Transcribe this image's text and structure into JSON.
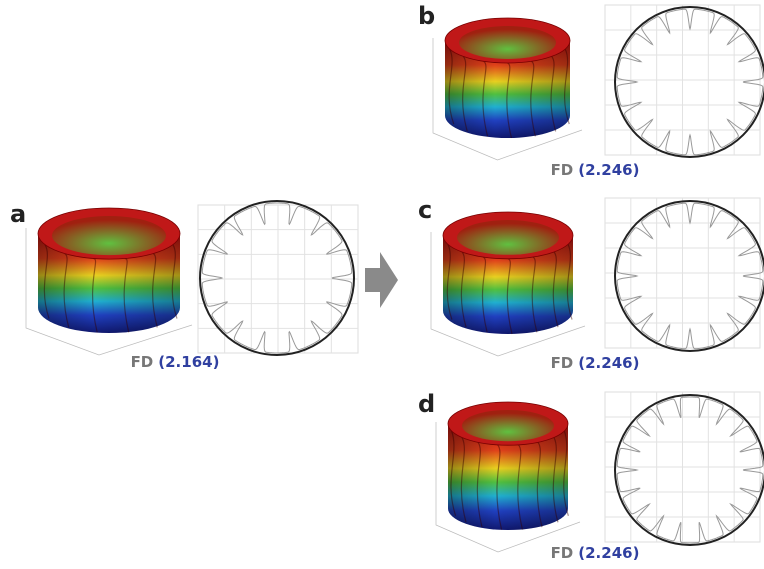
{
  "panels": [
    {
      "label": "a",
      "fd_name": "FD",
      "fd_value": "(2.164)"
    },
    {
      "label": "b",
      "fd_name": "FD",
      "fd_value": "(2.246)"
    },
    {
      "label": "c",
      "fd_name": "FD",
      "fd_value": "(2.246)"
    },
    {
      "label": "d",
      "fd_name": "FD",
      "fd_value": "(2.246)"
    }
  ]
}
